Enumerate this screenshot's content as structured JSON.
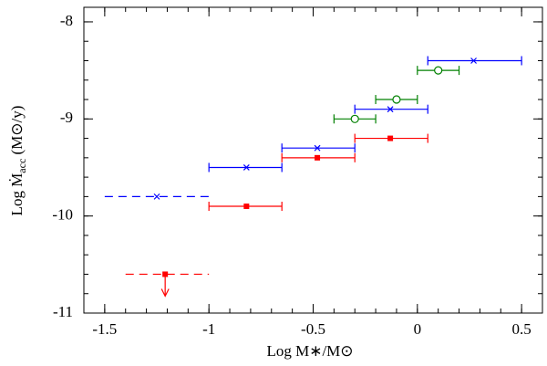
{
  "chart_data": {
    "type": "errorbar",
    "xlabel": "Log M∗/M⊙",
    "ylabel_parts": [
      "Log Ṁ",
      "acc",
      " (M⊙/y)"
    ],
    "xlim": [
      -1.6,
      0.6
    ],
    "ylim": [
      -11,
      -7.85
    ],
    "xticks": [
      -1.5,
      -1,
      -0.5,
      0,
      0.5
    ],
    "yticks": [
      -8,
      -9,
      -10,
      -11
    ],
    "xminor_step": 0.1,
    "yminor_step": 0.2,
    "series": [
      {
        "color": "#0000ff",
        "marker": "cross",
        "x": [
          -1.25,
          -0.82,
          -0.48,
          -0.13,
          0.27
        ],
        "y": [
          -9.8,
          -9.5,
          -9.3,
          -8.9,
          -8.4
        ],
        "xmin": [
          -1.5,
          -1.0,
          -0.65,
          -0.3,
          0.05
        ],
        "xmax": [
          -1.0,
          -0.65,
          -0.3,
          0.05,
          0.5
        ],
        "dashed": [
          true,
          false,
          false,
          false,
          false
        ],
        "upper_limit": [
          false,
          false,
          false,
          false,
          false
        ]
      },
      {
        "color": "#ff0000",
        "marker": "square",
        "x": [
          -1.21,
          -0.82,
          -0.48,
          -0.13
        ],
        "y": [
          -10.6,
          -9.9,
          -9.4,
          -9.2
        ],
        "xmin": [
          -1.4,
          -1.0,
          -0.65,
          -0.3
        ],
        "xmax": [
          -1.0,
          -0.65,
          -0.3,
          0.05
        ],
        "dashed": [
          true,
          false,
          false,
          false
        ],
        "upper_limit": [
          true,
          false,
          false,
          false
        ]
      },
      {
        "color": "#008000",
        "marker": "circle",
        "x": [
          -0.3,
          -0.1,
          0.1
        ],
        "y": [
          -9.0,
          -8.8,
          -8.5
        ],
        "xmin": [
          -0.4,
          -0.2,
          0.0
        ],
        "xmax": [
          -0.2,
          0.0,
          0.2
        ],
        "dashed": [
          false,
          false,
          false
        ],
        "upper_limit": [
          false,
          false,
          false
        ]
      }
    ]
  }
}
